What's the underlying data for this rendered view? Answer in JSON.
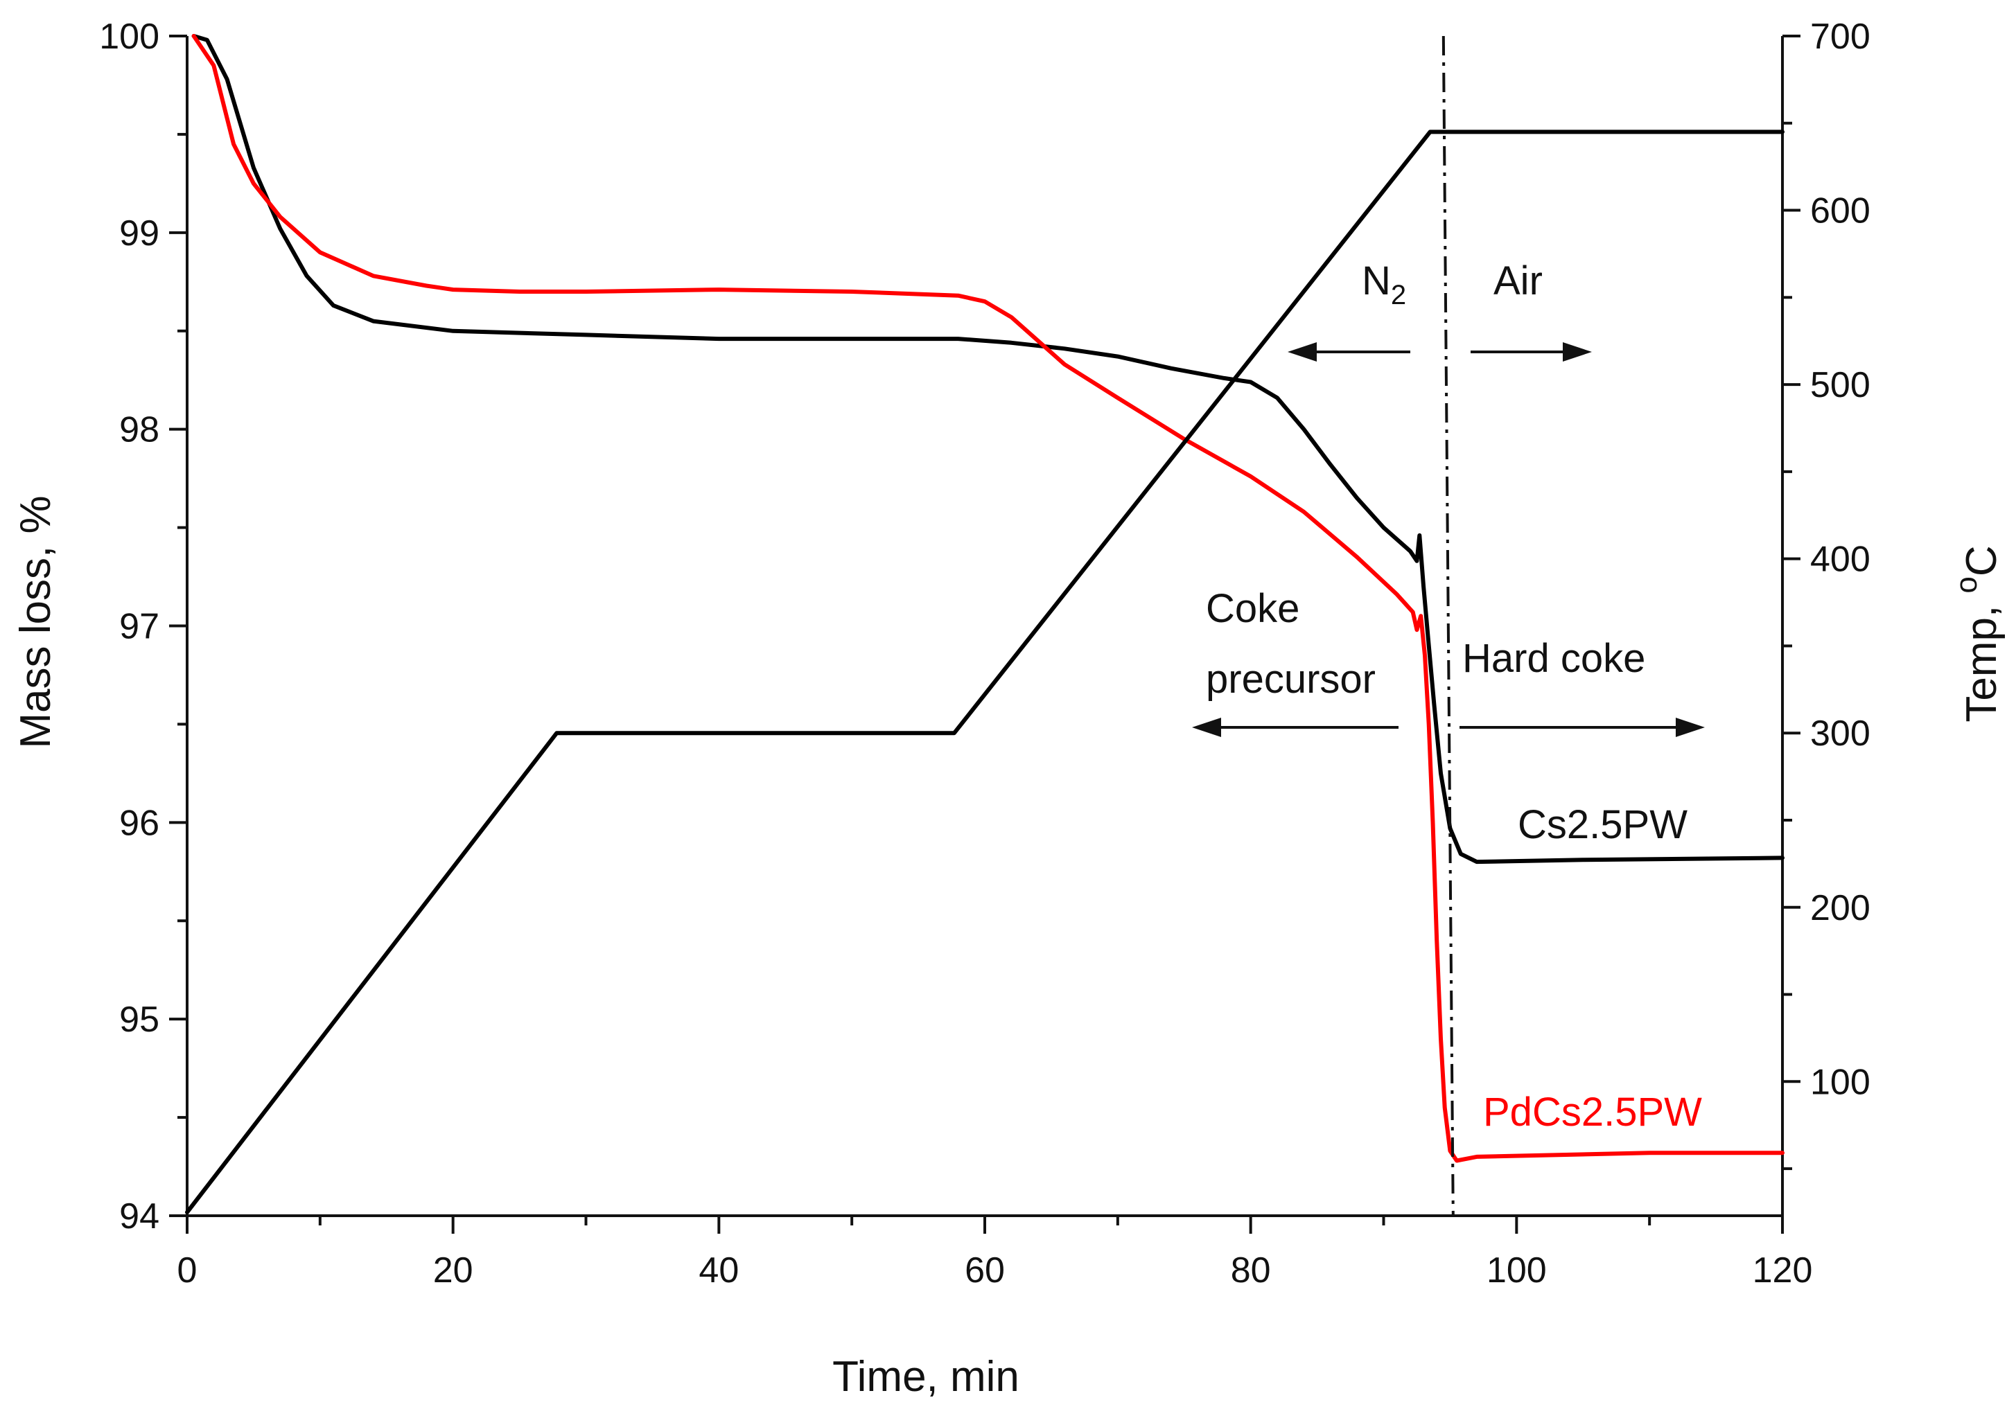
{
  "chart_data": {
    "type": "line",
    "xlabel": "Time, min",
    "ylabel_left": "Mass loss, %",
    "ylabel_right_prefix": "Temp, ",
    "ylabel_right_sup": "o",
    "ylabel_right_unit": "C",
    "xlim": [
      0,
      120
    ],
    "ylim_left": [
      94,
      100
    ],
    "ylim_right": [
      23,
      700
    ],
    "x_ticks": [
      "0",
      "20",
      "40",
      "60",
      "80",
      "100",
      "120"
    ],
    "y_left_ticks": [
      "94",
      "95",
      "96",
      "97",
      "98",
      "99",
      "100"
    ],
    "y_right_ticks": [
      "100",
      "200",
      "300",
      "400",
      "500",
      "600",
      "700"
    ],
    "grid": false,
    "series": [
      {
        "name": "Cs2.5PW",
        "axis": "left",
        "color": "#000000",
        "points": [
          [
            0.5,
            100
          ],
          [
            1.5,
            99.98
          ],
          [
            3,
            99.78
          ],
          [
            5,
            99.33
          ],
          [
            7,
            99.02
          ],
          [
            9,
            98.78
          ],
          [
            11,
            98.63
          ],
          [
            14,
            98.55
          ],
          [
            20,
            98.5
          ],
          [
            30,
            98.48
          ],
          [
            40,
            98.46
          ],
          [
            50,
            98.46
          ],
          [
            58,
            98.46
          ],
          [
            62,
            98.44
          ],
          [
            66,
            98.41
          ],
          [
            70,
            98.37
          ],
          [
            74,
            98.31
          ],
          [
            78,
            98.26
          ],
          [
            80,
            98.24
          ],
          [
            82,
            98.16
          ],
          [
            84,
            98.0
          ],
          [
            86,
            97.82
          ],
          [
            88,
            97.65
          ],
          [
            90,
            97.5
          ],
          [
            92,
            97.38
          ],
          [
            92.5,
            97.33
          ],
          [
            92.7,
            97.46
          ],
          [
            93.0,
            97.2
          ],
          [
            93.4,
            96.9
          ],
          [
            93.8,
            96.6
          ],
          [
            94.3,
            96.25
          ],
          [
            95.0,
            95.97
          ],
          [
            95.8,
            95.84
          ],
          [
            97,
            95.8
          ],
          [
            105,
            95.81
          ],
          [
            120,
            95.82
          ]
        ]
      },
      {
        "name": "PdCs2.5PW",
        "axis": "left",
        "color": "#ff0000",
        "points": [
          [
            0.5,
            100
          ],
          [
            2,
            99.85
          ],
          [
            3.5,
            99.45
          ],
          [
            5,
            99.25
          ],
          [
            7,
            99.08
          ],
          [
            10,
            98.9
          ],
          [
            14,
            98.78
          ],
          [
            18,
            98.73
          ],
          [
            20,
            98.71
          ],
          [
            25,
            98.7
          ],
          [
            30,
            98.7
          ],
          [
            40,
            98.71
          ],
          [
            50,
            98.7
          ],
          [
            58,
            98.68
          ],
          [
            60,
            98.65
          ],
          [
            62,
            98.57
          ],
          [
            64,
            98.45
          ],
          [
            66,
            98.33
          ],
          [
            70,
            98.16
          ],
          [
            75,
            97.95
          ],
          [
            80,
            97.76
          ],
          [
            84,
            97.58
          ],
          [
            88,
            97.35
          ],
          [
            91,
            97.16
          ],
          [
            92.2,
            97.07
          ],
          [
            92.5,
            96.98
          ],
          [
            92.8,
            97.05
          ],
          [
            93.1,
            96.85
          ],
          [
            93.4,
            96.5
          ],
          [
            93.7,
            96.0
          ],
          [
            94.0,
            95.4
          ],
          [
            94.3,
            94.9
          ],
          [
            94.6,
            94.55
          ],
          [
            95.0,
            94.33
          ],
          [
            95.5,
            94.28
          ],
          [
            97,
            94.3
          ],
          [
            110,
            94.32
          ],
          [
            120,
            94.32
          ]
        ]
      },
      {
        "name": "Temperature",
        "axis": "right",
        "color": "#000000",
        "points": [
          [
            0,
            25
          ],
          [
            27.8,
            300
          ],
          [
            57.7,
            300
          ],
          [
            93.5,
            645
          ],
          [
            120,
            645
          ]
        ]
      }
    ],
    "annotations": {
      "n2_label": "N",
      "n2_sub": "2",
      "air_label": "Air",
      "coke_label_line1": "Coke",
      "coke_label_line2": "precursor",
      "hard_coke_label": "Hard coke",
      "series_label_black": "Cs2.5PW",
      "series_label_red": "PdCs2.5PW"
    },
    "divider_x": 94.5
  }
}
